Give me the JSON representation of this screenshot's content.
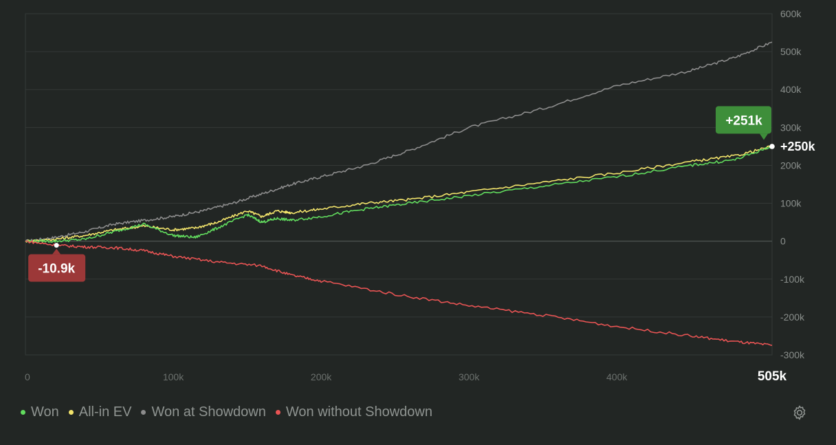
{
  "chart_data": {
    "type": "line",
    "x_unit": "hands",
    "xlim": [
      0,
      505000
    ],
    "ylim": [
      -300000,
      600000
    ],
    "x_ticks": [
      "0",
      "100k",
      "200k",
      "300k",
      "400k"
    ],
    "x_tick_values": [
      0,
      100000,
      200000,
      300000,
      400000
    ],
    "x_end_label": "505k",
    "y_ticks": [
      "600k",
      "500k",
      "400k",
      "300k",
      "200k",
      "100k",
      "0",
      "-100k",
      "-200k",
      "-300k"
    ],
    "y_tick_values": [
      600000,
      500000,
      400000,
      300000,
      200000,
      100000,
      0,
      -100000,
      -200000,
      -300000
    ],
    "grid": true,
    "legend_position": "bottom-left",
    "series": [
      {
        "name": "Won at Showdown",
        "color": "#8c8c8c",
        "x": [
          0,
          20000,
          40000,
          60000,
          80000,
          100000,
          120000,
          140000,
          160000,
          180000,
          200000,
          230000,
          260000,
          300000,
          350000,
          400000,
          450000,
          480000,
          505000
        ],
        "y": [
          0,
          10000,
          25000,
          45000,
          55000,
          65000,
          80000,
          100000,
          125000,
          150000,
          170000,
          200000,
          240000,
          300000,
          350000,
          410000,
          450000,
          485000,
          525000
        ]
      },
      {
        "name": "All-in EV",
        "color": "#f2e46b",
        "x": [
          0,
          20000,
          40000,
          60000,
          80000,
          100000,
          115000,
          130000,
          150000,
          160000,
          170000,
          180000,
          200000,
          230000,
          260000,
          300000,
          350000,
          400000,
          450000,
          480000,
          505000
        ],
        "y": [
          0,
          5000,
          15000,
          30000,
          40000,
          30000,
          35000,
          50000,
          80000,
          65000,
          80000,
          75000,
          85000,
          100000,
          110000,
          130000,
          155000,
          180000,
          210000,
          225000,
          250000
        ]
      },
      {
        "name": "Won",
        "color": "#62dc5e",
        "x": [
          0,
          20000,
          40000,
          60000,
          80000,
          100000,
          115000,
          130000,
          150000,
          160000,
          170000,
          180000,
          200000,
          230000,
          260000,
          300000,
          350000,
          400000,
          450000,
          480000,
          505000
        ],
        "y": [
          0,
          0,
          5000,
          25000,
          45000,
          15000,
          10000,
          35000,
          70000,
          50000,
          60000,
          55000,
          65000,
          85000,
          100000,
          120000,
          145000,
          170000,
          200000,
          215000,
          250000
        ]
      },
      {
        "name": "Won without Showdown",
        "color": "#e95454",
        "x": [
          0,
          21000,
          40000,
          60000,
          80000,
          100000,
          130000,
          160000,
          180000,
          200000,
          250000,
          300000,
          350000,
          400000,
          450000,
          480000,
          505000
        ],
        "y": [
          0,
          -10900,
          -15000,
          -17000,
          -25000,
          -40000,
          -55000,
          -65000,
          -90000,
          -105000,
          -140000,
          -170000,
          -195000,
          -225000,
          -250000,
          -265000,
          -275000
        ]
      }
    ],
    "annotations": {
      "max_label": {
        "text": "+251k",
        "x": 505000,
        "y": 251000,
        "color": "#3e8e3a"
      },
      "min_label": {
        "text": "-10.9k",
        "x": 21000,
        "y": -10900,
        "color": "#9c3838"
      },
      "end_value": {
        "text": "+250k",
        "x": 505000,
        "y": 250000
      }
    }
  },
  "legend": [
    {
      "label": "Won",
      "color": "#62dc5e"
    },
    {
      "label": "All-in EV",
      "color": "#f2e46b"
    },
    {
      "label": "Won at Showdown",
      "color": "#8c8c8c"
    },
    {
      "label": "Won without Showdown",
      "color": "#e95454"
    }
  ],
  "settings_icon": "gear-icon"
}
